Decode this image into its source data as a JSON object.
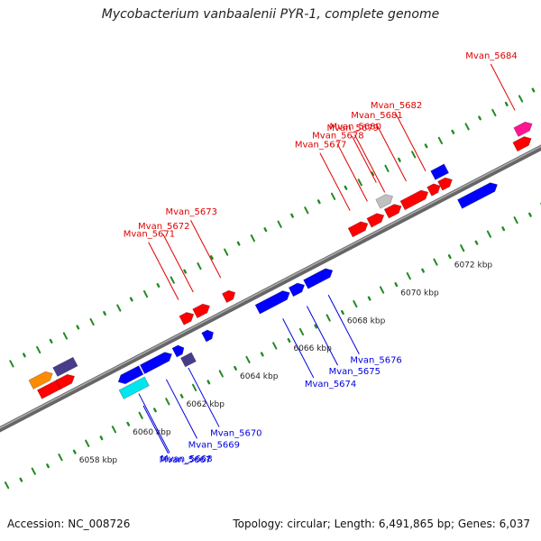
{
  "title": "Mycobacterium vanbaalenii PYR-1, complete genome",
  "accession": "Accession: NC_008726",
  "summary": "Topology: circular; Length: 6,491,865 bp; Genes: 6,037",
  "ticks": [
    {
      "label": "6058 kbp",
      "kb": 6058
    },
    {
      "label": "6060 kbp",
      "kb": 6060
    },
    {
      "label": "6062 kbp",
      "kb": 6062
    },
    {
      "label": "6064 kbp",
      "kb": 6064
    },
    {
      "label": "6066 kbp",
      "kb": 6066
    },
    {
      "label": "6068 kbp",
      "kb": 6068
    },
    {
      "label": "6070 kbp",
      "kb": 6070
    },
    {
      "label": "6072 kbp",
      "kb": 6072
    }
  ],
  "genes": [
    {
      "name": "",
      "kb": 6057.25,
      "len": 0.8,
      "strand": "fwd",
      "row": 2,
      "color": "#ff8c00",
      "dir": 1
    },
    {
      "name": "",
      "kb": 6057.35,
      "len": 0.95,
      "strand": "fwd",
      "row": 1,
      "color": "#ff0000",
      "dir": 1
    },
    {
      "name": "",
      "kb": 6058.05,
      "len": 0.6,
      "strand": "fwd",
      "row": 1,
      "color": "#ff0000",
      "dir": 1
    },
    {
      "name": "",
      "kb": 6058.15,
      "len": 0.75,
      "strand": "fwd",
      "row": 2,
      "color": "#483d8b",
      "dir": 0
    },
    {
      "name": "Mvan_5667",
      "kb": 6059.75,
      "len": 0.95,
      "strand": "rev",
      "row": 2,
      "color": "#00e5ee",
      "dir": 0
    },
    {
      "name": "Mvan_5668",
      "kb": 6059.85,
      "len": 0.85,
      "strand": "rev",
      "row": 1,
      "color": "#0000ff",
      "dir": -1
    },
    {
      "name": "Mvan_5669",
      "kb": 6060.75,
      "len": 1.1,
      "strand": "rev",
      "row": 1,
      "color": "#0000ff",
      "dir": 1
    },
    {
      "name": "Mvan_5670",
      "kb": 6061.95,
      "len": 0.35,
      "strand": "rev",
      "row": 1,
      "color": "#0000ff",
      "dir": 1
    },
    {
      "name": "",
      "kb": 6062.05,
      "len": 0.4,
      "strand": "rev",
      "row": 2,
      "color": "#483d8b",
      "dir": 0
    },
    {
      "name": "",
      "kb": 6063.05,
      "len": 0.35,
      "strand": "rev",
      "row": 1,
      "color": "#0000ff",
      "dir": 1
    },
    {
      "name": "Mvan_5671",
      "kb": 6062.65,
      "len": 0.45,
      "strand": "fwd",
      "row": 1,
      "color": "#ff0000",
      "dir": 1
    },
    {
      "name": "Mvan_5672",
      "kb": 6063.15,
      "len": 0.55,
      "strand": "fwd",
      "row": 1,
      "color": "#ff0000",
      "dir": 1
    },
    {
      "name": "Mvan_5673",
      "kb": 6064.25,
      "len": 0.4,
      "strand": "fwd",
      "row": 1,
      "color": "#ff0000",
      "dir": 1
    },
    {
      "name": "Mvan_5674",
      "kb": 6065.05,
      "len": 1.2,
      "strand": "rev",
      "row": 1,
      "color": "#0000ff",
      "dir": 1
    },
    {
      "name": "Mvan_5675",
      "kb": 6066.3,
      "len": 0.5,
      "strand": "rev",
      "row": 1,
      "color": "#0000ff",
      "dir": 1
    },
    {
      "name": "Mvan_5676",
      "kb": 6066.85,
      "len": 1.0,
      "strand": "rev",
      "row": 1,
      "color": "#0000ff",
      "dir": 1
    },
    {
      "name": "Mvan_5677",
      "kb": 6068.95,
      "len": 0.65,
      "strand": "fwd",
      "row": 1,
      "color": "#ff0000",
      "dir": 1
    },
    {
      "name": "Mvan_5678",
      "kb": 6069.65,
      "len": 0.55,
      "strand": "fwd",
      "row": 1,
      "color": "#ff0000",
      "dir": 1
    },
    {
      "name": "Mvan_5679",
      "kb": 6070.2,
      "len": 0.55,
      "strand": "fwd",
      "row": 2,
      "color": "#c0c0c0",
      "dir": 1
    },
    {
      "name": "Mvan_5680",
      "kb": 6070.3,
      "len": 0.55,
      "strand": "fwd",
      "row": 1,
      "color": "#ff0000",
      "dir": 1
    },
    {
      "name": "Mvan_5681",
      "kb": 6070.9,
      "len": 0.95,
      "strand": "fwd",
      "row": 1,
      "color": "#ff0000",
      "dir": 1
    },
    {
      "name": "Mvan_5682",
      "kb": 6071.9,
      "len": 0.4,
      "strand": "fwd",
      "row": 1,
      "color": "#ff0000",
      "dir": 1
    },
    {
      "name": "",
      "kb": 6072.3,
      "len": 0.45,
      "strand": "fwd",
      "row": 1,
      "color": "#ff0000",
      "dir": 1
    },
    {
      "name": "",
      "kb": 6072.25,
      "len": 0.5,
      "strand": "fwd",
      "row": 2,
      "color": "#0000ff",
      "dir": 0
    },
    {
      "name": "",
      "kb": 6072.6,
      "len": 1.4,
      "strand": "rev",
      "row": 1,
      "color": "#0000ff",
      "dir": 1
    },
    {
      "name": "",
      "kb": 6075.1,
      "len": 0.6,
      "strand": "fwd",
      "row": 1,
      "color": "#ff0000",
      "dir": 1
    },
    {
      "name": "Mvan_5684",
      "kb": 6075.35,
      "len": 0.6,
      "strand": "fwd",
      "row": 2,
      "color": "#ff1493",
      "dir": 1
    }
  ]
}
